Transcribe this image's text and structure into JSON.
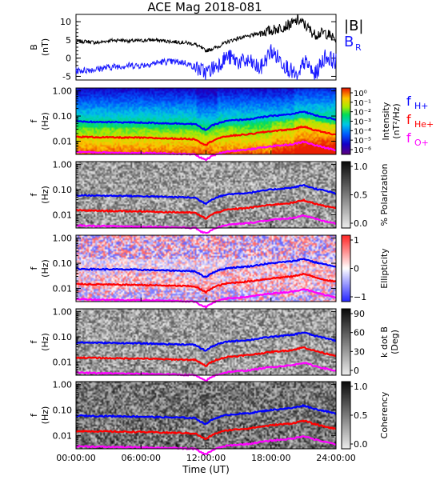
{
  "title": "ACE Mag 2018-081",
  "colors": {
    "B_total": "#000000",
    "B_R": "#1a1aff",
    "f_H": "#0000ff",
    "f_He": "#ff0000",
    "f_O": "#ff00ff"
  },
  "chart_data": [
    {
      "type": "line",
      "ylabel": "B\n(nT)",
      "ylim": [
        -6,
        12
      ],
      "yticks": [
        -5,
        0,
        5,
        10
      ],
      "series": [
        {
          "name": "|B|",
          "color": "#000000",
          "x": [
            0,
            1,
            2,
            3,
            4,
            5,
            6,
            7,
            8,
            9,
            10,
            11,
            12,
            13,
            14,
            15,
            16,
            17,
            18,
            19,
            20,
            20.5,
            21,
            21.5,
            22,
            23,
            24
          ],
          "y": [
            4.5,
            4.6,
            4.2,
            4.8,
            5.0,
            4.7,
            4.8,
            5.0,
            4.8,
            4.5,
            4.3,
            3.8,
            2.0,
            3.0,
            4.5,
            5.5,
            6.0,
            7.0,
            7.5,
            8.5,
            9.5,
            10.5,
            9.5,
            8.0,
            6.5,
            7.0,
            5.0
          ]
        },
        {
          "name": "B_R",
          "color": "#1a1aff",
          "x": [
            0,
            1,
            2,
            3,
            4,
            5,
            6,
            7,
            8,
            9,
            10,
            11,
            12,
            13,
            14,
            15,
            16,
            17,
            18,
            19,
            20,
            20.5,
            21,
            21.5,
            22,
            23,
            24
          ],
          "y": [
            -3.5,
            -3.3,
            -3.0,
            -2.5,
            -2.2,
            -2.0,
            -2.0,
            -1.5,
            -1.0,
            -1.0,
            -1.2,
            -2.5,
            -4.0,
            -2.0,
            0.5,
            -1.0,
            -1.0,
            -3.0,
            2.0,
            -1.0,
            -4.0,
            -6.0,
            -1.0,
            -2.0,
            -5.0,
            0.5,
            -1.0
          ]
        }
      ],
      "legend": [
        "|B|",
        "B_R"
      ]
    },
    {
      "type": "heatmap",
      "quantity": "Intensity",
      "ylabel": "f\n(Hz)",
      "colorbar": {
        "label": "Intensity\n(nT²/Hz)",
        "ticks": [
          "10⁰",
          "10⁻¹",
          "10⁻²",
          "10⁻³",
          "10⁻⁴",
          "10⁻⁵",
          "10⁻⁶"
        ]
      },
      "legend": [
        "f_H+",
        "f_He+",
        "f_O+"
      ]
    },
    {
      "type": "heatmap",
      "quantity": "% Polarization",
      "ylabel": "f\n(Hz)",
      "colorbar": {
        "label": "% Polarization",
        "ticks": [
          "1.0",
          "0.5",
          "0.0"
        ]
      }
    },
    {
      "type": "heatmap",
      "quantity": "Ellipticity",
      "ylabel": "f\n(Hz)",
      "colorbar": {
        "label": "Ellipticity",
        "ticks": [
          "1",
          "0",
          "−1"
        ]
      }
    },
    {
      "type": "heatmap",
      "quantity": "k dot B",
      "ylabel": "f\n(Hz)",
      "colorbar": {
        "label": "k dot B\n(Deg)",
        "ticks": [
          "90",
          "60",
          "30",
          "0"
        ]
      }
    },
    {
      "type": "heatmap",
      "quantity": "Coherency",
      "ylabel": "f\n(Hz)",
      "colorbar": {
        "label": "Coherency",
        "ticks": [
          "1.0",
          "0.5",
          "0.0"
        ]
      }
    }
  ],
  "spectrogram_axes": {
    "yticks": [
      "1.00",
      "0.10",
      "0.01"
    ],
    "ylim_hz": [
      0.003,
      1.3
    ]
  },
  "gyrofrequencies": {
    "x": [
      0,
      2,
      4,
      6,
      8,
      10,
      11,
      11.5,
      12,
      12.5,
      13,
      14,
      16,
      18,
      20,
      21,
      22,
      23,
      24
    ],
    "f_H+": [
      0.06,
      0.058,
      0.057,
      0.055,
      0.052,
      0.05,
      0.048,
      0.035,
      0.028,
      0.04,
      0.05,
      0.065,
      0.075,
      0.1,
      0.12,
      0.15,
      0.11,
      0.09,
      0.07
    ],
    "f_He+": [
      0.015,
      0.0145,
      0.014,
      0.0138,
      0.013,
      0.0125,
      0.012,
      0.009,
      0.007,
      0.01,
      0.0125,
      0.016,
      0.019,
      0.025,
      0.03,
      0.038,
      0.028,
      0.022,
      0.018
    ],
    "f_O+": [
      0.0038,
      0.0036,
      0.0035,
      0.0034,
      0.0033,
      0.0031,
      0.003,
      0.0022,
      0.0018,
      0.0025,
      0.0031,
      0.004,
      0.0047,
      0.0063,
      0.0075,
      0.0095,
      0.007,
      0.0055,
      0.0045
    ]
  },
  "time_axis": {
    "label": "Time (UT)",
    "range_hours": [
      0,
      24
    ],
    "ticks": [
      "00:00:00",
      "06:00:00",
      "12:00:00",
      "18:00:00",
      "24:00:00"
    ]
  }
}
